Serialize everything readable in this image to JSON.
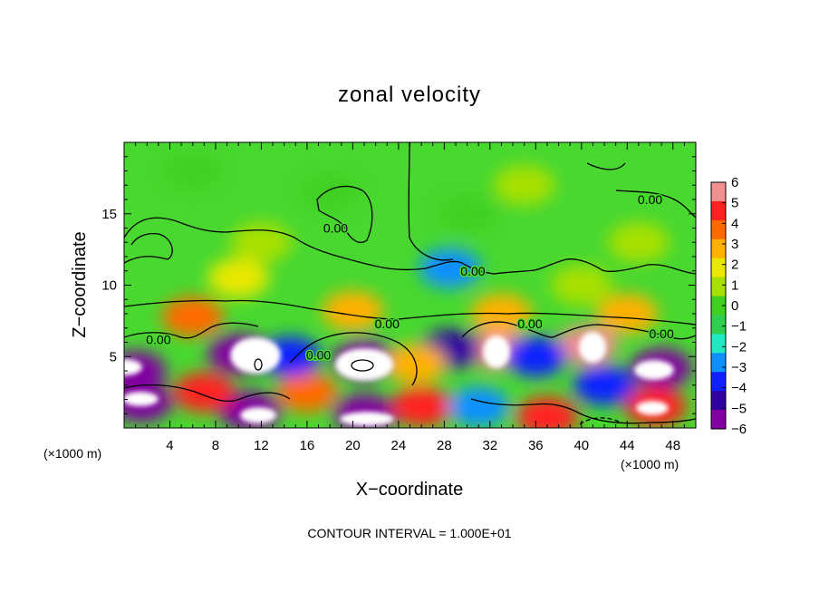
{
  "chart_data": {
    "type": "heatmap",
    "title": "zonal velocity",
    "xlabel": "X−coordinate",
    "ylabel": "Z−coordinate",
    "x_unit_left": "(×1000 m)",
    "x_unit_right": "(×1000 m)",
    "footer": "CONTOUR INTERVAL = 1.000E+01",
    "xlim": [
      0,
      50
    ],
    "ylim": [
      0,
      20
    ],
    "x_ticks": [
      4,
      8,
      12,
      16,
      20,
      24,
      28,
      32,
      36,
      40,
      44,
      48
    ],
    "x_tick_labels": [
      "4",
      "8",
      "12",
      "16",
      "20",
      "24",
      "28",
      "32",
      "36",
      "40",
      "44",
      "48"
    ],
    "y_ticks": [
      5,
      10,
      15
    ],
    "y_tick_labels": [
      "5",
      "10",
      "15"
    ],
    "colorbar": {
      "range": [
        -6,
        6
      ],
      "tick_labels": [
        "6",
        "5",
        "4",
        "3",
        "2",
        "1",
        "0",
        "−1",
        "−2",
        "−3",
        "−4",
        "−5",
        "−6"
      ],
      "colors": [
        "#f09090",
        "#ff2020",
        "#ff6a00",
        "#ffb000",
        "#e8e800",
        "#a8e000",
        "#40d020",
        "#2fd050",
        "#20e8c0",
        "#1090ff",
        "#1020ff",
        "#3000a0",
        "#8000a0"
      ]
    },
    "contour_labels": [
      {
        "text": "0.00",
        "x": 18.5,
        "z": 14.0
      },
      {
        "text": "0.00",
        "x": 30.5,
        "z": 11.0
      },
      {
        "text": "0.00",
        "x": 46.0,
        "z": 16.0
      },
      {
        "text": "0.00",
        "x": 23.0,
        "z": 7.3
      },
      {
        "text": "0.00",
        "x": 35.5,
        "z": 7.3
      },
      {
        "text": "0.00",
        "x": 3.0,
        "z": 6.2
      },
      {
        "text": "0.00",
        "x": 17.0,
        "z": 5.1
      },
      {
        "text": "0.00",
        "x": 47.0,
        "z": 6.6
      }
    ],
    "cells": [
      {
        "x": 1.0,
        "z": 4.0,
        "v": -6
      },
      {
        "x": 10.0,
        "z": 5.2,
        "v": -6
      },
      {
        "x": 21.0,
        "z": 4.8,
        "v": -6
      },
      {
        "x": 32.5,
        "z": 5.5,
        "v": 6
      },
      {
        "x": 40.5,
        "z": 5.8,
        "v": 6
      },
      {
        "x": 47.0,
        "z": 4.2,
        "v": -6
      },
      {
        "x": 1.5,
        "z": 1.8,
        "v": -6
      },
      {
        "x": 11.0,
        "z": 1.2,
        "v": -6
      },
      {
        "x": 21.0,
        "z": 1.0,
        "v": -6
      },
      {
        "x": 37.0,
        "z": 0.8,
        "v": 5
      },
      {
        "x": 46.5,
        "z": 1.5,
        "v": 5
      },
      {
        "x": 28.5,
        "z": 5.5,
        "v": -5
      },
      {
        "x": 7.0,
        "z": 2.5,
        "v": 5
      },
      {
        "x": 16.0,
        "z": 2.5,
        "v": 4
      },
      {
        "x": 26.0,
        "z": 1.5,
        "v": 5
      },
      {
        "x": 14.5,
        "z": 5.0,
        "v": -4
      },
      {
        "x": 36.0,
        "z": 5.0,
        "v": -4
      },
      {
        "x": 25.5,
        "z": 4.5,
        "v": 3
      },
      {
        "x": 42.0,
        "z": 3.0,
        "v": -4
      },
      {
        "x": 31.0,
        "z": 1.5,
        "v": -3
      },
      {
        "x": 6.0,
        "z": 7.8,
        "v": 4
      },
      {
        "x": 20.0,
        "z": 8.2,
        "v": 3
      },
      {
        "x": 33.0,
        "z": 8.0,
        "v": 3
      },
      {
        "x": 44.0,
        "z": 8.0,
        "v": 3
      },
      {
        "x": 28.5,
        "z": 11.2,
        "v": -3
      },
      {
        "x": 10.0,
        "z": 10.5,
        "v": 2
      },
      {
        "x": 40.0,
        "z": 10.0,
        "v": 1
      },
      {
        "x": 18.0,
        "z": 16.5,
        "v": 0
      },
      {
        "x": 35.0,
        "z": 17.0,
        "v": 1
      },
      {
        "x": 6.0,
        "z": 18.0,
        "v": 0
      },
      {
        "x": 45.0,
        "z": 13.0,
        "v": 1
      },
      {
        "x": 12.0,
        "z": 13.0,
        "v": 1
      },
      {
        "x": 30.0,
        "z": 15.0,
        "v": 0
      }
    ]
  }
}
